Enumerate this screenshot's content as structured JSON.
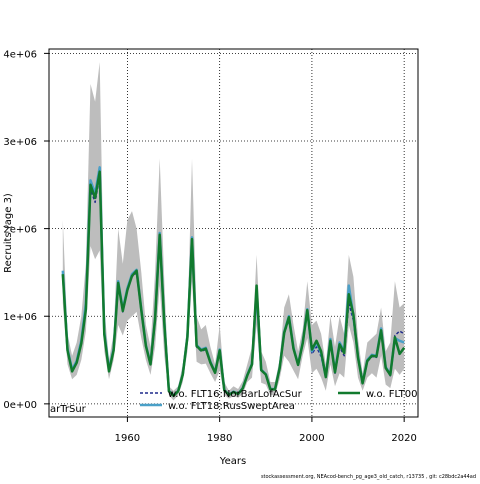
{
  "chart_data": {
    "type": "line",
    "xlabel": "Years",
    "ylabel": "Recruits (age 3)",
    "xlim": [
      1943,
      2023
    ],
    "ylim": [
      -150000,
      4050000
    ],
    "xticks": [
      1960,
      1980,
      2000,
      2020
    ],
    "xtick_labels": [
      "1960",
      "1980",
      "2000",
      "2020"
    ],
    "yticks": [
      0,
      1000000,
      2000000,
      3000000,
      4000000
    ],
    "ytick_labels": [
      "0e+00",
      "1e+06",
      "2e+06",
      "3e+06",
      "4e+06"
    ],
    "grid": true,
    "grid_style": "dotted",
    "legend_placement": "bottom",
    "years": [
      1946,
      1947,
      1948,
      1949,
      1950,
      1951,
      1952,
      1953,
      1954,
      1955,
      1956,
      1957,
      1958,
      1959,
      1960,
      1961,
      1962,
      1963,
      1964,
      1965,
      1966,
      1967,
      1968,
      1969,
      1970,
      1971,
      1972,
      1973,
      1974,
      1975,
      1976,
      1977,
      1978,
      1979,
      1980,
      1981,
      1982,
      1983,
      1984,
      1985,
      1986,
      1987,
      1988,
      1989,
      1990,
      1991,
      1992,
      1993,
      1994,
      1995,
      1996,
      1997,
      1998,
      1999,
      2000,
      2001,
      2002,
      2003,
      2004,
      2005,
      2006,
      2007,
      2008,
      2009,
      2010,
      2011,
      2012,
      2013,
      2014,
      2015,
      2016,
      2017,
      2018,
      2019,
      2020
    ],
    "band": {
      "lower": [
        1150000,
        450000,
        280000,
        330000,
        500000,
        830000,
        1800000,
        1650000,
        1750000,
        600000,
        280000,
        500000,
        900000,
        780000,
        950000,
        1000000,
        1050000,
        750000,
        500000,
        330000,
        650000,
        1350000,
        550000,
        100000,
        40000,
        100000,
        250000,
        600000,
        1400000,
        480000,
        450000,
        460000,
        350000,
        250000,
        380000,
        100000,
        60000,
        90000,
        70000,
        110000,
        250000,
        300000,
        900000,
        240000,
        220000,
        100000,
        100000,
        280000,
        550000,
        480000,
        380000,
        280000,
        550000,
        750000,
        350000,
        400000,
        300000,
        150000,
        450000,
        200000,
        350000,
        300000,
        900000,
        700000,
        300000,
        150000,
        300000,
        350000,
        300000,
        550000,
        220000,
        180000,
        400000,
        330000,
        400000
      ],
      "upper": [
        2100000,
        800000,
        550000,
        700000,
        1000000,
        1600000,
        3650000,
        3450000,
        3900000,
        1100000,
        500000,
        800000,
        2000000,
        1600000,
        2100000,
        2200000,
        2000000,
        1500000,
        900000,
        650000,
        1500000,
        2800000,
        1400000,
        200000,
        150000,
        200000,
        450000,
        900000,
        2800000,
        1000000,
        850000,
        900000,
        650000,
        450000,
        900000,
        250000,
        150000,
        200000,
        170000,
        260000,
        450000,
        650000,
        1700000,
        600000,
        480000,
        250000,
        250000,
        500000,
        1100000,
        1250000,
        900000,
        600000,
        850000,
        1400000,
        900000,
        950000,
        800000,
        450000,
        1000000,
        650000,
        1000000,
        800000,
        1700000,
        1450000,
        750000,
        350000,
        700000,
        750000,
        800000,
        1100000,
        600000,
        700000,
        1400000,
        1100000,
        1150000
      ]
    },
    "series": [
      {
        "name": "w.o. FLT16:NorBarLofAcSur",
        "color": "#1f2a8c",
        "style": "dashed",
        "values": [
          1500000,
          620000,
          380000,
          480000,
          700000,
          1100000,
          2450000,
          2300000,
          2600000,
          800000,
          380000,
          620000,
          1350000,
          1050000,
          1300000,
          1450000,
          1500000,
          1050000,
          650000,
          450000,
          950000,
          1900000,
          900000,
          140000,
          90000,
          140000,
          330000,
          750000,
          1850000,
          650000,
          600000,
          620000,
          460000,
          350000,
          600000,
          150000,
          100000,
          130000,
          110000,
          170000,
          320000,
          440000,
          1250000,
          380000,
          330000,
          160000,
          160000,
          400000,
          800000,
          960000,
          620000,
          440000,
          680000,
          1050000,
          570000,
          650000,
          540000,
          300000,
          700000,
          350000,
          650000,
          550000,
          1150000,
          950000,
          520000,
          230000,
          480000,
          540000,
          530000,
          820000,
          400000,
          320000,
          780000,
          830000,
          800000
        ]
      },
      {
        "name": "w.o. FLT18:RusSweptArea",
        "color": "#4aa0c8",
        "style": "solid",
        "values": [
          1520000,
          630000,
          390000,
          490000,
          720000,
          1150000,
          2550000,
          2400000,
          2700000,
          820000,
          390000,
          630000,
          1400000,
          1080000,
          1320000,
          1480000,
          1530000,
          1080000,
          670000,
          460000,
          980000,
          1950000,
          930000,
          150000,
          95000,
          150000,
          340000,
          770000,
          1900000,
          670000,
          620000,
          640000,
          480000,
          360000,
          620000,
          160000,
          105000,
          140000,
          115000,
          180000,
          330000,
          460000,
          1300000,
          390000,
          340000,
          170000,
          170000,
          410000,
          820000,
          1000000,
          640000,
          450000,
          700000,
          1080000,
          600000,
          700000,
          580000,
          310000,
          740000,
          370000,
          700000,
          600000,
          1350000,
          1000000,
          540000,
          240000,
          500000,
          560000,
          550000,
          860000,
          420000,
          340000,
          750000,
          720000,
          700000
        ]
      },
      {
        "name": "w.o. FLT00",
        "color": "#117a2e",
        "style": "solid",
        "values": [
          1480000,
          610000,
          370000,
          470000,
          690000,
          1080000,
          2500000,
          2350000,
          2650000,
          790000,
          370000,
          610000,
          1380000,
          1060000,
          1300000,
          1460000,
          1520000,
          1070000,
          660000,
          450000,
          970000,
          1930000,
          920000,
          145000,
          92000,
          145000,
          335000,
          760000,
          1880000,
          660000,
          610000,
          630000,
          470000,
          355000,
          610000,
          155000,
          102000,
          135000,
          112000,
          175000,
          325000,
          450000,
          1350000,
          385000,
          335000,
          165000,
          165000,
          405000,
          810000,
          990000,
          630000,
          445000,
          690000,
          1070000,
          620000,
          720000,
          600000,
          305000,
          720000,
          360000,
          680000,
          580000,
          1250000,
          1020000,
          530000,
          235000,
          490000,
          550000,
          540000,
          840000,
          410000,
          330000,
          760000,
          570000,
          640000
        ]
      }
    ],
    "legend_fragment": "arTrSur",
    "footnote": "stockassessment.org, NEAcod-bench_pg_age3_old_catch, r13735 , git: c28bdc2a44ad"
  }
}
